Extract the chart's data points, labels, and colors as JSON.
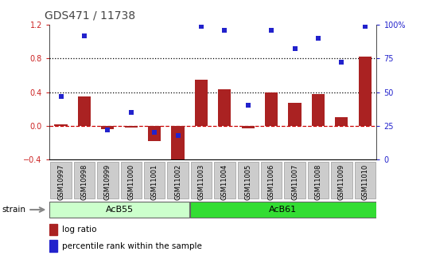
{
  "title": "GDS471 / 11738",
  "samples": [
    "GSM10997",
    "GSM10998",
    "GSM10999",
    "GSM11000",
    "GSM11001",
    "GSM11002",
    "GSM11003",
    "GSM11004",
    "GSM11005",
    "GSM11006",
    "GSM11007",
    "GSM11008",
    "GSM11009",
    "GSM11010"
  ],
  "log_ratio": [
    0.02,
    0.35,
    -0.04,
    -0.02,
    -0.18,
    -0.45,
    0.55,
    0.43,
    -0.03,
    0.4,
    0.27,
    0.38,
    0.1,
    0.82
  ],
  "percentile_rank": [
    47,
    92,
    22,
    35,
    20,
    18,
    99,
    96,
    40,
    96,
    82,
    90,
    72,
    99
  ],
  "groups": [
    {
      "label": "AcB55",
      "start": 0,
      "end": 6,
      "color": "#CCFFCC"
    },
    {
      "label": "AcB61",
      "start": 6,
      "end": 14,
      "color": "#33DD33"
    }
  ],
  "bar_color": "#AA2222",
  "dot_color": "#2222CC",
  "ylim_left": [
    -0.4,
    1.2
  ],
  "ylim_right": [
    0,
    100
  ],
  "yticks_left": [
    -0.4,
    0.0,
    0.4,
    0.8,
    1.2
  ],
  "yticks_right": [
    0,
    25,
    50,
    75,
    100
  ],
  "ytick_labels_right": [
    "0",
    "25",
    "50",
    "75",
    "100%"
  ],
  "hlines": [
    0.8,
    0.4
  ],
  "hline_zero_color": "#CC0000",
  "dotted_line_color": "#000000",
  "legend_log_ratio": "log ratio",
  "legend_percentile": "percentile rank within the sample",
  "strain_label": "strain",
  "plot_bg_color": "#ffffff",
  "tick_box_color": "#cccccc",
  "title_fontsize": 10,
  "tick_fontsize": 7,
  "bar_width": 0.55
}
